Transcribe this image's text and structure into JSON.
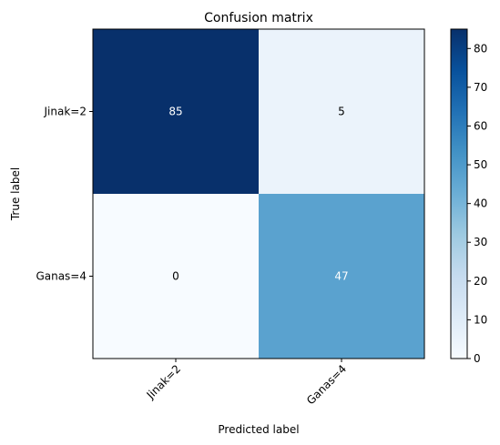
{
  "chart_data": {
    "type": "heatmap",
    "title": "Confusion matrix",
    "xlabel": "Predicted label",
    "ylabel": "True label",
    "x_categories": [
      "Jinak=2",
      "Ganas=4"
    ],
    "y_categories": [
      "Jinak=2",
      "Ganas=4"
    ],
    "values": [
      [
        85,
        5
      ],
      [
        0,
        47
      ]
    ],
    "colormap": "Blues",
    "colorbar": {
      "min": 0,
      "max": 85,
      "ticks": [
        0,
        10,
        20,
        30,
        40,
        50,
        60,
        70,
        80
      ]
    },
    "x_tick_rotation_deg": 45,
    "grid": false
  }
}
